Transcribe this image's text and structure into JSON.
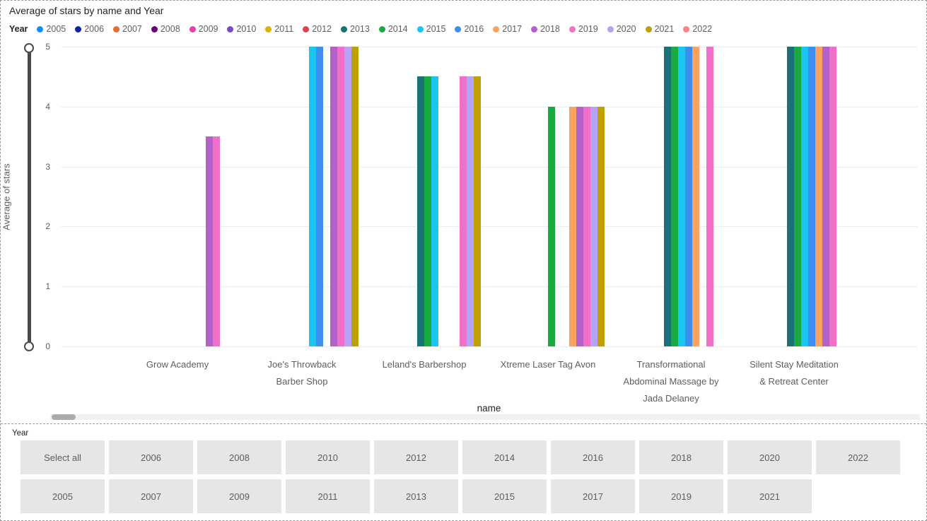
{
  "chart": {
    "title": "Average of stars by name and Year",
    "legend": {
      "title": "Year"
    },
    "y_axis": {
      "title": "Average of stars",
      "ticks": [
        "5",
        "4",
        "3",
        "2",
        "1",
        "0"
      ]
    },
    "x_axis": {
      "title": "name",
      "category_labels": [
        [
          "Grow Academy"
        ],
        [
          "Joe's Throwback",
          "Barber Shop"
        ],
        [
          "Leland's Barbershop"
        ],
        [
          "Xtreme Laser Tag Avon"
        ],
        [
          "Transformational",
          "Abdominal Massage by",
          "Jada Delaney"
        ],
        [
          "Silent Stay Meditation",
          "& Retreat Center"
        ]
      ]
    }
  },
  "chart_data": {
    "type": "bar",
    "title": "Average of stars by name and Year",
    "xlabel": "name",
    "ylabel": "Average of stars",
    "ylim": [
      0,
      5
    ],
    "grid": "horizontal-dotted",
    "legend_position": "top",
    "years": [
      "2005",
      "2006",
      "2007",
      "2008",
      "2009",
      "2010",
      "2011",
      "2012",
      "2013",
      "2014",
      "2015",
      "2016",
      "2017",
      "2018",
      "2019",
      "2020",
      "2021",
      "2022"
    ],
    "year_colors": {
      "2005": "#118DFF",
      "2006": "#12239E",
      "2007": "#E66C37",
      "2008": "#6B007B",
      "2009": "#E044A7",
      "2010": "#744EC2",
      "2011": "#D9B300",
      "2012": "#D64550",
      "2013": "#197278",
      "2014": "#1AAB40",
      "2015": "#1BC5F2",
      "2016": "#3E8DF3",
      "2017": "#F9A35F",
      "2018": "#B55FC8",
      "2019": "#F36FC7",
      "2020": "#B6A2F9",
      "2021": "#BEA000",
      "2022": "#FB8381"
    },
    "categories": [
      "Grow Academy",
      "Joe's Throwback Barber Shop",
      "Leland's Barbershop",
      "Xtreme Laser Tag Avon",
      "Transformational Abdominal Massage by Jada Delaney",
      "Silent Stay Meditation & Retreat Center"
    ],
    "series": [
      {
        "name": "2013",
        "values": [
          null,
          null,
          4.5,
          null,
          5,
          5
        ]
      },
      {
        "name": "2014",
        "values": [
          null,
          null,
          4.5,
          4,
          5,
          5
        ]
      },
      {
        "name": "2015",
        "values": [
          null,
          5,
          4.5,
          null,
          5,
          5
        ]
      },
      {
        "name": "2016",
        "values": [
          null,
          5,
          null,
          null,
          5,
          5
        ]
      },
      {
        "name": "2017",
        "values": [
          null,
          null,
          null,
          4,
          5,
          5
        ]
      },
      {
        "name": "2018",
        "values": [
          3.5,
          5,
          null,
          4,
          null,
          5
        ]
      },
      {
        "name": "2019",
        "values": [
          3.5,
          5,
          4.5,
          4,
          5,
          5
        ]
      },
      {
        "name": "2020",
        "values": [
          null,
          5,
          4.5,
          4,
          null,
          null
        ]
      },
      {
        "name": "2021",
        "values": [
          null,
          5,
          4.5,
          4,
          null,
          null
        ]
      }
    ]
  },
  "slicer": {
    "title": "Year",
    "rows": [
      [
        "Select all",
        "2006",
        "2008",
        "2010",
        "2012",
        "2014",
        "2016",
        "2018",
        "2020",
        "2022"
      ],
      [
        "2005",
        "2007",
        "2009",
        "2011",
        "2013",
        "2015",
        "2017",
        "2019",
        "2021"
      ]
    ]
  }
}
